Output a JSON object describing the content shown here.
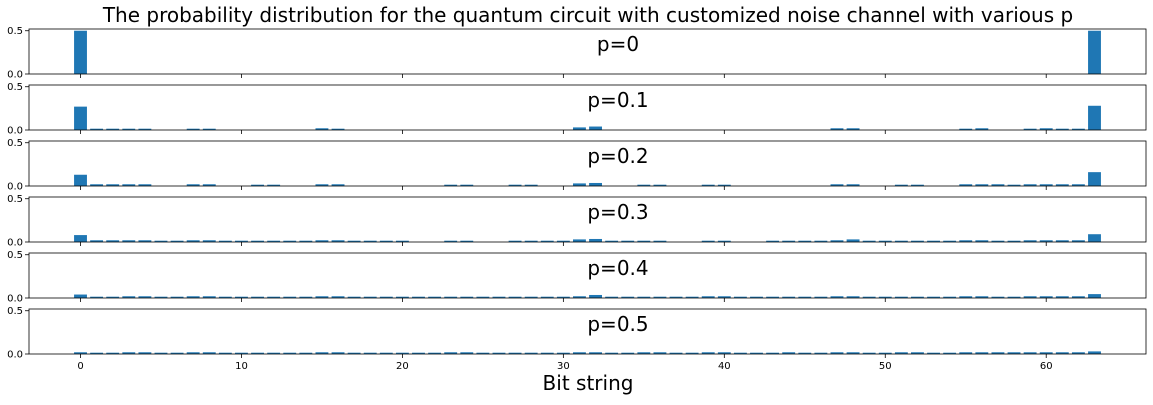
{
  "chart_data": {
    "type": "bar",
    "title": "The probability distribution for the quantum circuit with customized noise channel with various p",
    "xlabel": "Bit string",
    "ylabel": "",
    "color": "#1f77b4",
    "xlim": [
      -3.2,
      66.2
    ],
    "ylim": [
      0,
      0.52
    ],
    "x_ticks": [
      0,
      10,
      20,
      30,
      40,
      50,
      60
    ],
    "y_ticks": [
      0.0,
      0.5
    ],
    "y_tick_labels": [
      "0.0",
      "0.5"
    ],
    "grid": false,
    "legend": "none",
    "x": [
      0,
      1,
      2,
      3,
      4,
      5,
      6,
      7,
      8,
      9,
      10,
      11,
      12,
      13,
      14,
      15,
      16,
      17,
      18,
      19,
      20,
      21,
      22,
      23,
      24,
      25,
      26,
      27,
      28,
      29,
      30,
      31,
      32,
      33,
      34,
      35,
      36,
      37,
      38,
      39,
      40,
      41,
      42,
      43,
      44,
      45,
      46,
      47,
      48,
      49,
      50,
      51,
      52,
      53,
      54,
      55,
      56,
      57,
      58,
      59,
      60,
      61,
      62,
      63
    ],
    "panels": [
      {
        "label": "p=0",
        "values": [
          0.5,
          0,
          0,
          0,
          0,
          0,
          0,
          0,
          0,
          0,
          0,
          0,
          0,
          0,
          0,
          0,
          0,
          0,
          0,
          0,
          0,
          0,
          0,
          0,
          0,
          0,
          0,
          0,
          0,
          0,
          0,
          0,
          0,
          0,
          0,
          0,
          0,
          0,
          0,
          0,
          0,
          0,
          0,
          0,
          0,
          0,
          0,
          0,
          0,
          0,
          0,
          0,
          0,
          0,
          0,
          0,
          0,
          0,
          0,
          0,
          0,
          0,
          0,
          0.5
        ]
      },
      {
        "label": "p=0.1",
        "values": [
          0.27,
          0.015,
          0.015,
          0.015,
          0.015,
          0,
          0,
          0.015,
          0.015,
          0,
          0,
          0,
          0,
          0,
          0,
          0.02,
          0.015,
          0,
          0,
          0,
          0,
          0,
          0,
          0,
          0,
          0,
          0,
          0,
          0,
          0,
          0,
          0.03,
          0.04,
          0,
          0,
          0,
          0,
          0,
          0,
          0,
          0,
          0,
          0,
          0,
          0,
          0,
          0,
          0.02,
          0.02,
          0,
          0,
          0,
          0,
          0,
          0,
          0.015,
          0.02,
          0,
          0,
          0.015,
          0.02,
          0.015,
          0.015,
          0.28
        ]
      },
      {
        "label": "p=0.2",
        "values": [
          0.13,
          0.02,
          0.02,
          0.02,
          0.02,
          0,
          0,
          0.02,
          0.02,
          0,
          0,
          0.015,
          0.015,
          0,
          0,
          0.02,
          0.02,
          0,
          0,
          0,
          0,
          0,
          0,
          0.015,
          0.015,
          0,
          0,
          0.015,
          0.015,
          0,
          0,
          0.03,
          0.035,
          0,
          0,
          0.015,
          0.015,
          0,
          0,
          0.015,
          0.015,
          0,
          0,
          0,
          0,
          0,
          0,
          0.02,
          0.02,
          0,
          0,
          0.015,
          0.015,
          0,
          0,
          0.02,
          0.02,
          0.02,
          0.015,
          0.02,
          0.02,
          0.02,
          0.02,
          0.16
        ]
      },
      {
        "label": "p=0.3",
        "values": [
          0.08,
          0.02,
          0.02,
          0.02,
          0.02,
          0.015,
          0.015,
          0.02,
          0.02,
          0.015,
          0.015,
          0.015,
          0.015,
          0.015,
          0.015,
          0.02,
          0.02,
          0.015,
          0.015,
          0.015,
          0.015,
          0,
          0,
          0.015,
          0.015,
          0,
          0,
          0.015,
          0.015,
          0.015,
          0.015,
          0.03,
          0.035,
          0.015,
          0.015,
          0.015,
          0.015,
          0,
          0,
          0.015,
          0.015,
          0,
          0,
          0.015,
          0.015,
          0.015,
          0.015,
          0.02,
          0.03,
          0.015,
          0.015,
          0.015,
          0.015,
          0.015,
          0.015,
          0.02,
          0.02,
          0.015,
          0.015,
          0.02,
          0.02,
          0.02,
          0.02,
          0.09
        ]
      },
      {
        "label": "p=0.4",
        "values": [
          0.04,
          0.015,
          0.015,
          0.02,
          0.02,
          0.015,
          0.015,
          0.02,
          0.02,
          0.015,
          0.015,
          0.015,
          0.015,
          0.015,
          0.015,
          0.02,
          0.02,
          0.015,
          0.015,
          0.015,
          0.015,
          0.015,
          0.015,
          0.015,
          0.015,
          0.015,
          0.015,
          0.015,
          0.015,
          0.015,
          0.015,
          0.02,
          0.035,
          0.015,
          0.015,
          0.015,
          0.015,
          0.015,
          0.015,
          0.02,
          0.02,
          0.015,
          0.015,
          0.015,
          0.015,
          0.015,
          0.015,
          0.02,
          0.02,
          0.015,
          0.015,
          0.015,
          0.015,
          0.015,
          0.015,
          0.02,
          0.02,
          0.015,
          0.015,
          0.02,
          0.02,
          0.02,
          0.02,
          0.045
        ]
      },
      {
        "label": "p=0.5",
        "values": [
          0.02,
          0.015,
          0.015,
          0.02,
          0.02,
          0.015,
          0.015,
          0.02,
          0.02,
          0.015,
          0.015,
          0.015,
          0.015,
          0.015,
          0.015,
          0.02,
          0.02,
          0.015,
          0.015,
          0.015,
          0.015,
          0.015,
          0.015,
          0.02,
          0.02,
          0.015,
          0.015,
          0.015,
          0.015,
          0.015,
          0.015,
          0.02,
          0.02,
          0.015,
          0.015,
          0.02,
          0.02,
          0.015,
          0.015,
          0.02,
          0.02,
          0.015,
          0.015,
          0.015,
          0.02,
          0.015,
          0.015,
          0.02,
          0.02,
          0.015,
          0.015,
          0.02,
          0.02,
          0.015,
          0.015,
          0.02,
          0.02,
          0.02,
          0.02,
          0.02,
          0.02,
          0.02,
          0.02,
          0.03
        ]
      }
    ]
  }
}
